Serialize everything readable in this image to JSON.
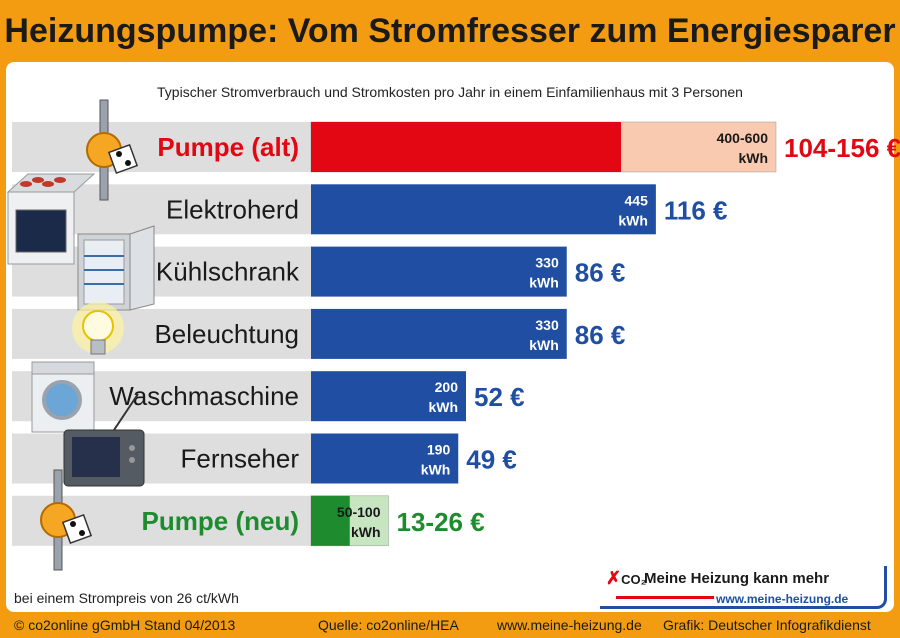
{
  "title": "Heizungspumpe: Vom Stromfresser zum Energiesparer",
  "footnote": "bei einem Strompreis von 26 ct/kWh",
  "footer": {
    "copyright": "© co2online gGmbH Stand 04/2013",
    "source": "Quelle: co2online/HEA",
    "url": "www.meine-heizung.de",
    "credit": "Grafik: Deutscher Infografikdienst"
  },
  "logo": {
    "co2": "CO₂",
    "name": "Meine Heizung kann mehr",
    "url": "www.meine-heizung.de"
  },
  "colors": {
    "red": "#e30613",
    "blue": "#1f4ea3",
    "green": "#1e8c2e",
    "light_red": "#f9c9b0",
    "light_green": "#c6e5c0",
    "orange": "#f39c12"
  },
  "chart_data": {
    "type": "bar",
    "orientation": "horizontal",
    "title": "Typischer Stromverbrauch und Stromkosten pro Jahr in einem Einfamilienhaus mit 3 Personen",
    "unit": "kWh",
    "xlim": [
      0,
      650
    ],
    "categories": [
      "Pumpe (alt)",
      "Elektroherd",
      "Kühlschrank",
      "Beleuchtung",
      "Waschmaschine",
      "Fernseher",
      "Pumpe (neu)"
    ],
    "series": [
      {
        "values": [
          400,
          445,
          330,
          330,
          200,
          190,
          50
        ],
        "max_values": [
          600,
          null,
          null,
          null,
          null,
          null,
          100
        ]
      }
    ],
    "bar_labels": [
      [
        "400-600",
        "kWh"
      ],
      [
        "445",
        "kWh"
      ],
      [
        "330",
        "kWh"
      ],
      [
        "330",
        "kWh"
      ],
      [
        "200",
        "kWh"
      ],
      [
        "190",
        "kWh"
      ],
      [
        "50-100",
        "kWh"
      ]
    ],
    "costs": [
      "104-156 €",
      "116 €",
      "86 €",
      "86 €",
      "52 €",
      "49 €",
      "13-26 €"
    ],
    "category_colors": [
      "#e30613",
      "#1a1a1a",
      "#1a1a1a",
      "#1a1a1a",
      "#1a1a1a",
      "#1a1a1a",
      "#1e8c2e"
    ],
    "bar_colors": [
      "#e30613",
      "#1f4ea3",
      "#1f4ea3",
      "#1f4ea3",
      "#1f4ea3",
      "#1f4ea3",
      "#1e8c2e"
    ],
    "range_colors": [
      "#f9c9b0",
      null,
      null,
      null,
      null,
      null,
      "#c6e5c0"
    ],
    "cost_colors": [
      "#e30613",
      "#1f4ea3",
      "#1f4ea3",
      "#1f4ea3",
      "#1f4ea3",
      "#1f4ea3",
      "#1e8c2e"
    ],
    "icons": [
      "pump-old-icon",
      "stove-icon",
      "fridge-icon",
      "lightbulb-icon",
      "washing-machine-icon",
      "tv-icon",
      "pump-new-icon"
    ]
  }
}
